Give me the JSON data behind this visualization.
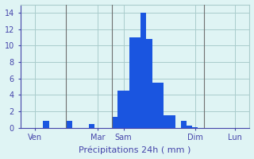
{
  "title": "",
  "xlabel": "Précipitations 24h ( mm )",
  "ylabel": "",
  "background_color": "#dff4f4",
  "bar_color": "#1a55e0",
  "grid_color": "#aacccc",
  "text_color": "#4444aa",
  "ylim": [
    0,
    15
  ],
  "yticks": [
    0,
    2,
    4,
    6,
    8,
    10,
    12,
    14
  ],
  "day_labels": [
    "Ven",
    "Mar",
    "Sam",
    "Dim",
    "Lun"
  ],
  "n_bars": 40,
  "bar_values": [
    0,
    0,
    0,
    0,
    0.8,
    0,
    0,
    0,
    0.8,
    0,
    0,
    0,
    0.5,
    0,
    0,
    0,
    1.3,
    4.5,
    4.5,
    11.0,
    11.0,
    14.0,
    10.8,
    5.5,
    5.5,
    1.5,
    1.5,
    0,
    0.8,
    0.3,
    0.1,
    0,
    0,
    0,
    0,
    0,
    0,
    0,
    0,
    0
  ],
  "day_tick_positions": [
    2,
    13,
    17.5,
    30,
    37
  ],
  "vline_positions": [
    7.5,
    15.5,
    31.5
  ],
  "vline_color": "#707070",
  "xlabel_fontsize": 8,
  "tick_fontsize": 7
}
